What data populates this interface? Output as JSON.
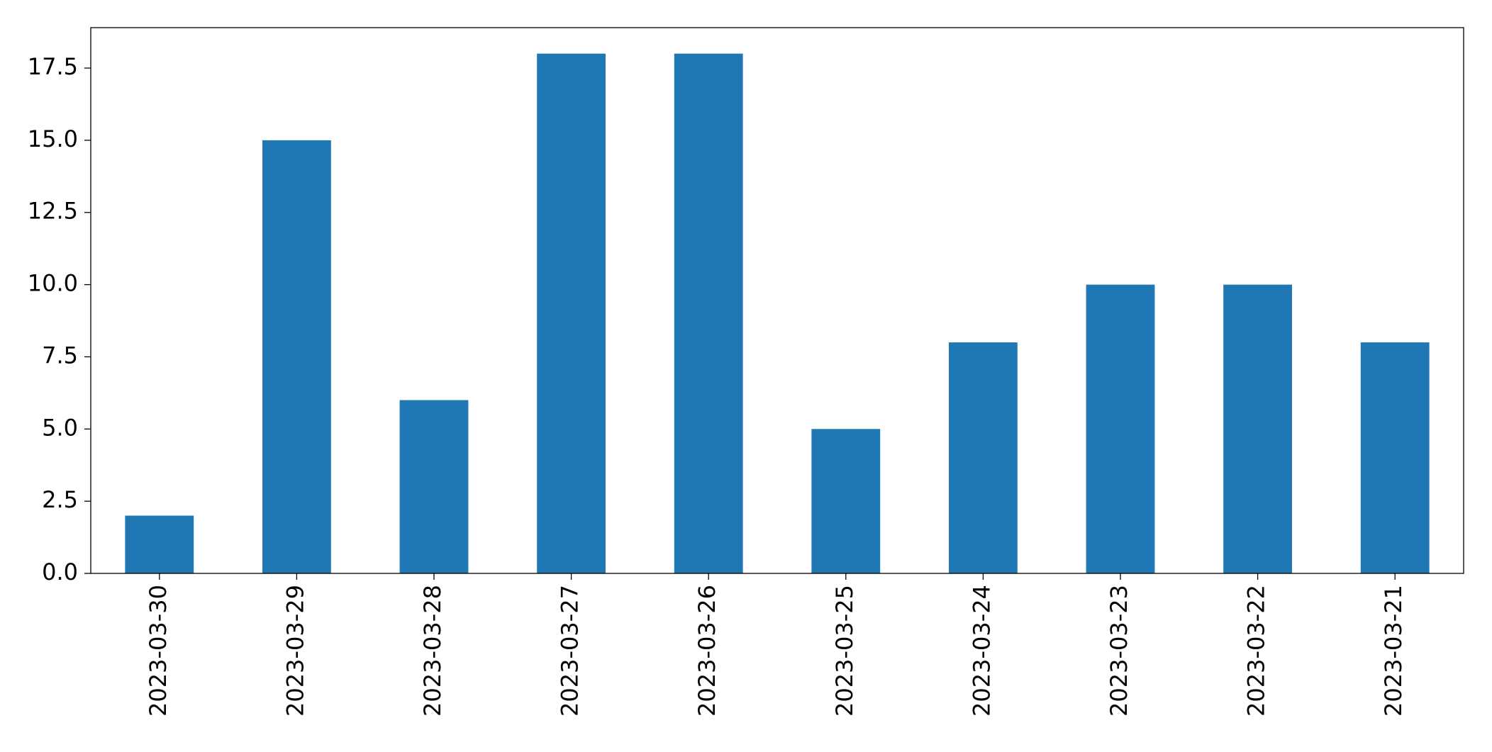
{
  "chart_data": {
    "type": "bar",
    "categories": [
      "2023-03-30",
      "2023-03-29",
      "2023-03-28",
      "2023-03-27",
      "2023-03-26",
      "2023-03-25",
      "2023-03-24",
      "2023-03-23",
      "2023-03-22",
      "2023-03-21"
    ],
    "values": [
      2,
      15,
      6,
      18,
      18,
      5,
      8,
      10,
      10,
      8
    ],
    "color": "#1f77b4",
    "ylim": [
      0,
      18.9
    ],
    "yticks": [
      {
        "value": 0,
        "label": "0.0"
      },
      2.5,
      {
        "value": 5,
        "label": "5.0"
      },
      7.5,
      {
        "value": 10,
        "label": "10.0"
      },
      12.5,
      {
        "value": 15,
        "label": "15.0"
      },
      17.5
    ],
    "grid": false
  }
}
